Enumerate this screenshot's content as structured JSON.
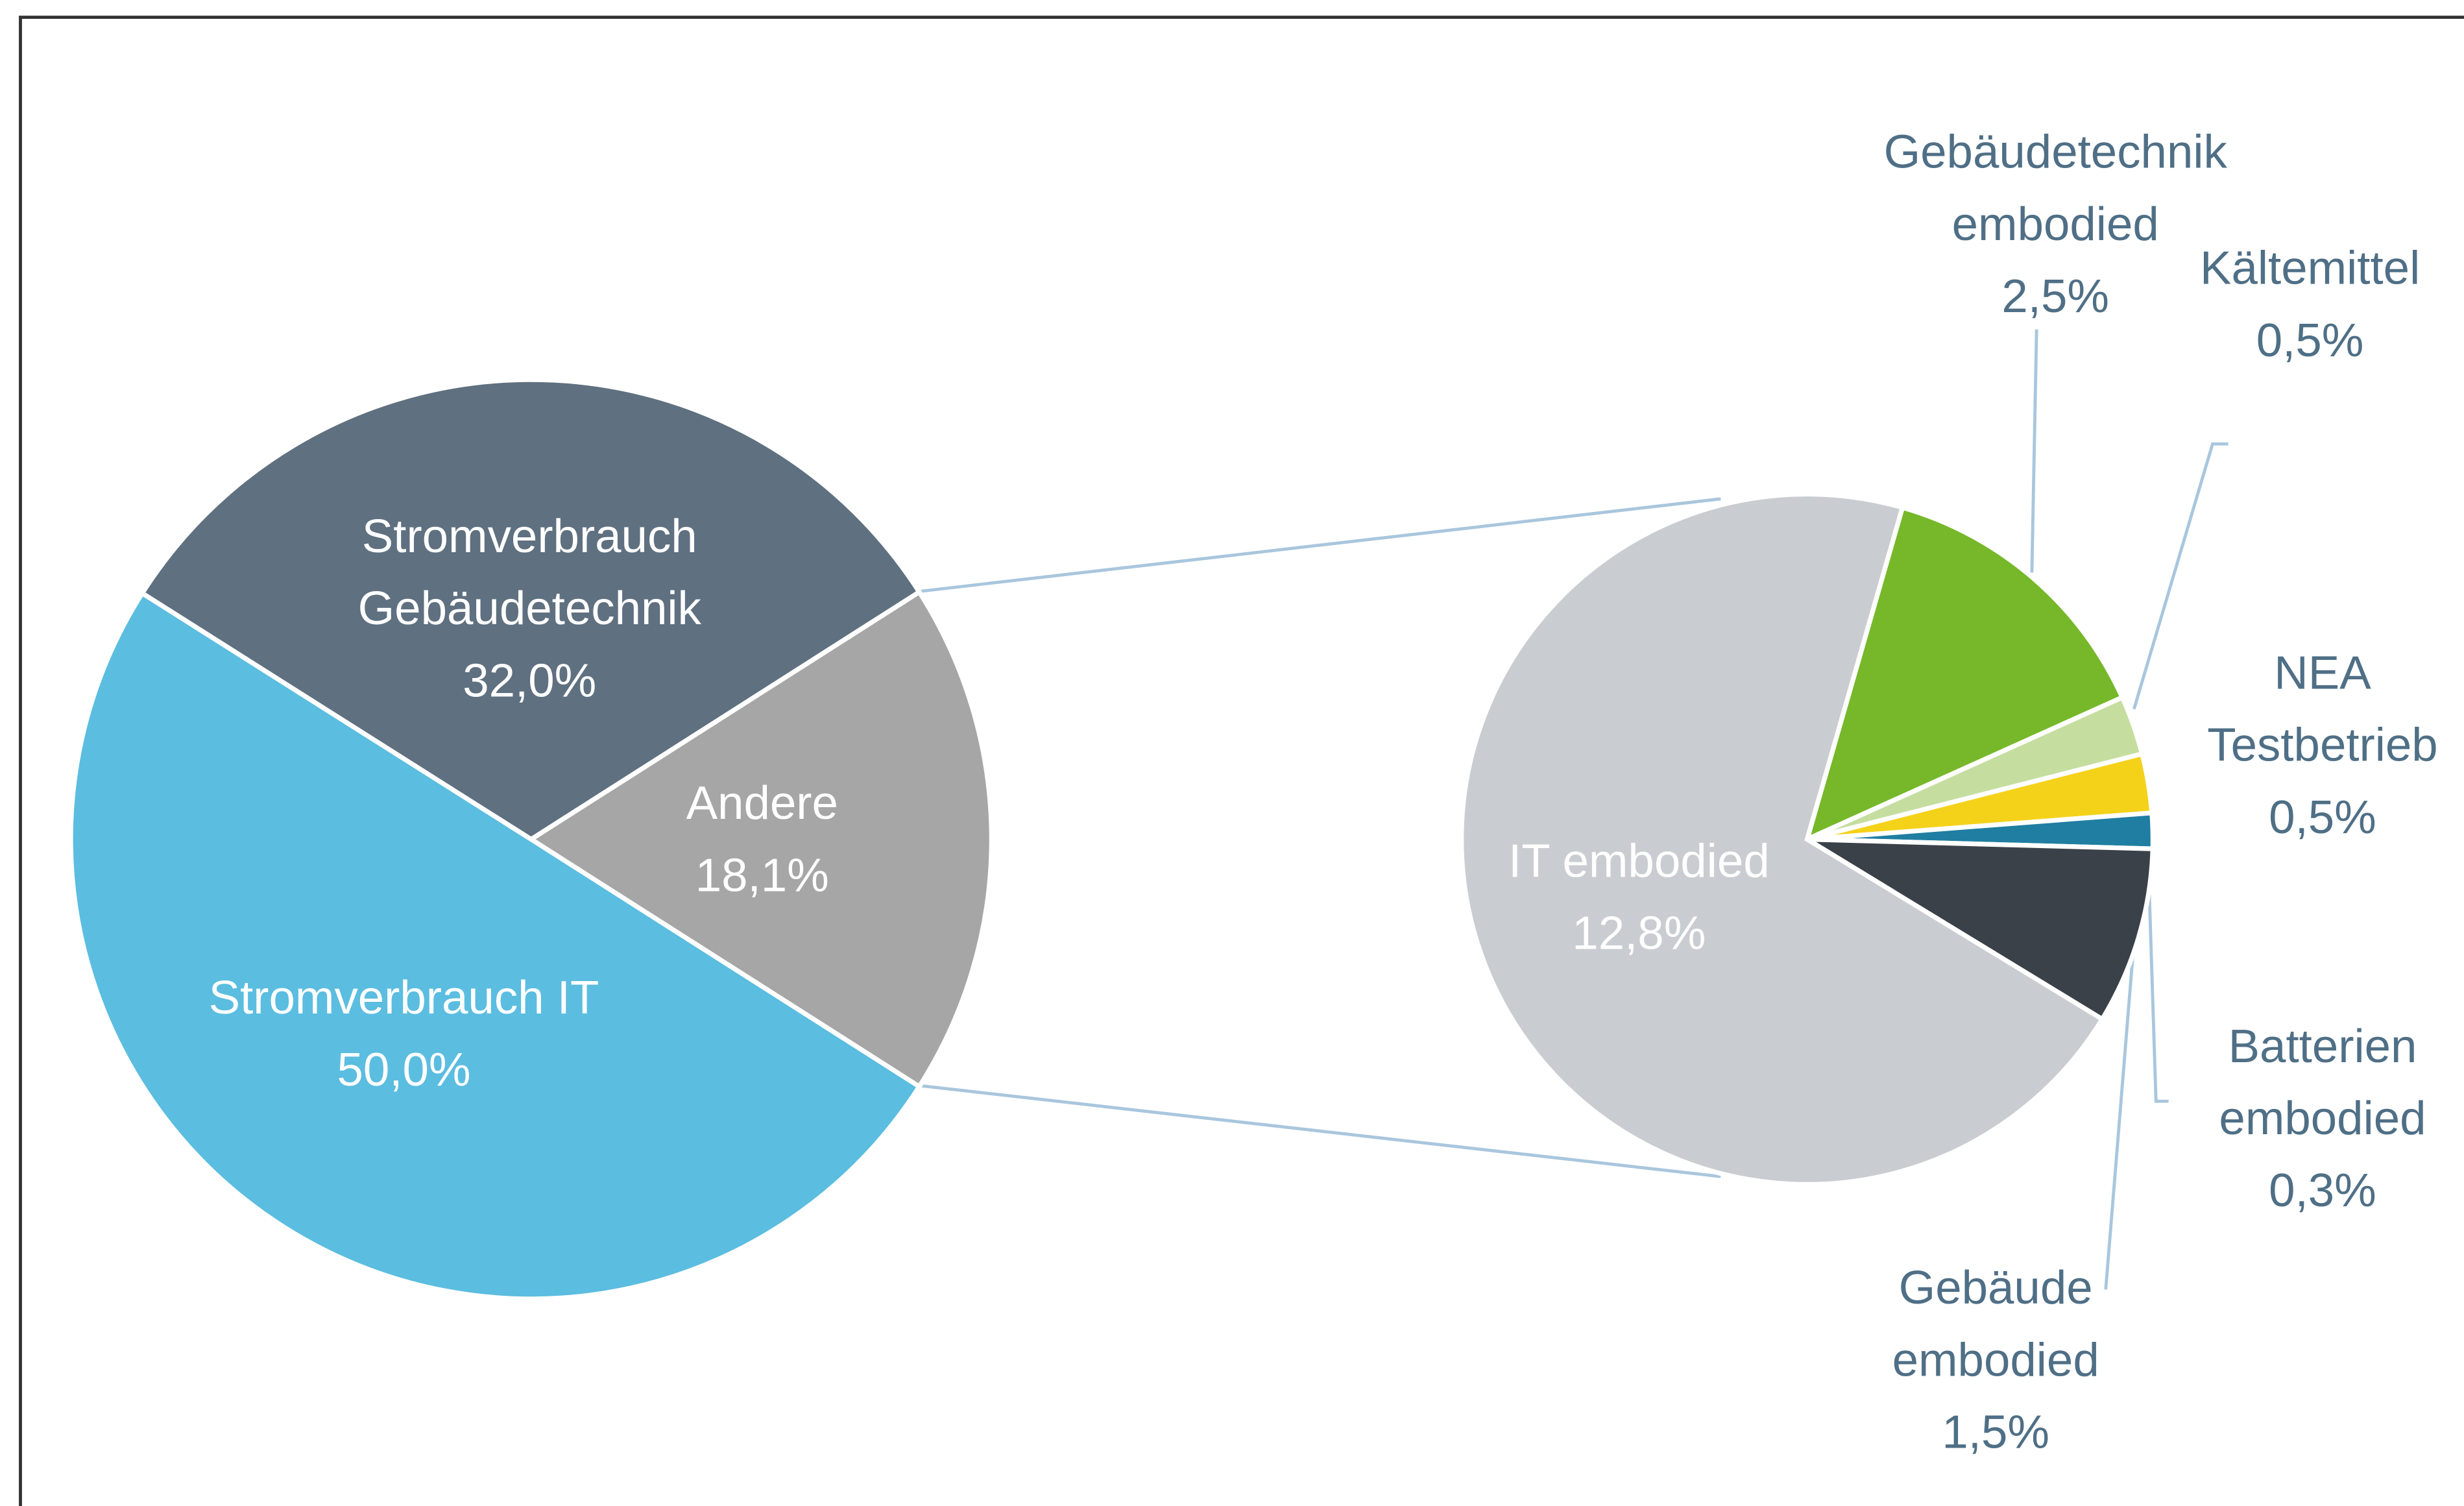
{
  "chart_data": [
    {
      "type": "pie",
      "categories": [
        "Andere",
        "Stromverbrauch IT",
        "Stromverbrauch\nGebäudetechnik"
      ],
      "values": [
        18.1,
        50.0,
        32.0
      ],
      "value_labels": [
        "18,1%",
        "50,0%",
        "32,0%"
      ],
      "colors": [
        "#a6a6a6",
        "#5bbde0",
        "#5f7080"
      ]
    },
    {
      "type": "pie",
      "categories": [
        "Gebäudetechnik\nembodied",
        "Kältemittel",
        "NEA\nTestbetrieb",
        "Batterien\nembodied",
        "Gebäude\nembodied",
        "IT embodied"
      ],
      "values": [
        2.5,
        0.5,
        0.5,
        0.3,
        1.5,
        12.8
      ],
      "value_labels": [
        "2,5%",
        "0,5%",
        "0,5%",
        "0,3%",
        "1,5%",
        "12,8%"
      ],
      "colors": [
        "#76b82a",
        "#c5dea0",
        "#f5d21a",
        "#1f7ea1",
        "#3b4149",
        "#c9cdd1"
      ]
    }
  ]
}
